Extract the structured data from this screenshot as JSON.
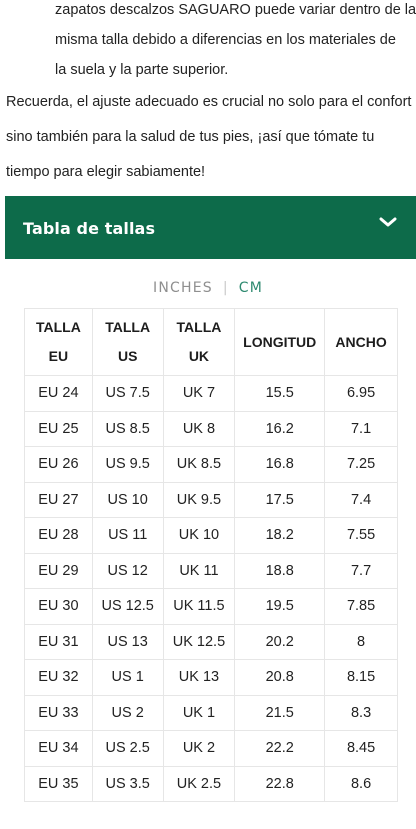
{
  "intro": {
    "list_lines": [
      "zapatos descalzos SAGUARO puede variar dentro de la",
      "misma talla debido a diferencias en los materiales de",
      "la suela y la parte superior."
    ],
    "paragraph_lines": [
      "Recuerda, el ajuste adecuado es crucial no solo para el confort",
      "sino también para la salud de tus pies, ¡así que tómate tu",
      "tiempo para elegir sabiamente!"
    ]
  },
  "accordion": {
    "title": "Tabla de tallas",
    "icon": "chevron-down-icon",
    "background": "#0d6b4a"
  },
  "units": {
    "inches": "INCHES",
    "separator": "|",
    "cm": "CM",
    "selected": "CM",
    "active_color": "#2e8a70"
  },
  "table": {
    "headers": [
      [
        "TALLA",
        "EU"
      ],
      [
        "TALLA",
        "US"
      ],
      [
        "TALLA",
        "UK"
      ],
      [
        "LONGITUD"
      ],
      [
        "ANCHO"
      ]
    ],
    "rows": [
      [
        "EU 24",
        "US 7.5",
        "UK 7",
        "15.5",
        "6.95"
      ],
      [
        "EU 25",
        "US 8.5",
        "UK 8",
        "16.2",
        "7.1"
      ],
      [
        "EU 26",
        "US 9.5",
        "UK 8.5",
        "16.8",
        "7.25"
      ],
      [
        "EU 27",
        "US 10",
        "UK 9.5",
        "17.5",
        "7.4"
      ],
      [
        "EU 28",
        "US 11",
        "UK 10",
        "18.2",
        "7.55"
      ],
      [
        "EU 29",
        "US 12",
        "UK 11",
        "18.8",
        "7.7"
      ],
      [
        "EU 30",
        "US 12.5",
        "UK 11.5",
        "19.5",
        "7.85"
      ],
      [
        "EU 31",
        "US 13",
        "UK 12.5",
        "20.2",
        "8"
      ],
      [
        "EU 32",
        "US 1",
        "UK 13",
        "20.8",
        "8.15"
      ],
      [
        "EU 33",
        "US 2",
        "UK 1",
        "21.5",
        "8.3"
      ],
      [
        "EU 34",
        "US 2.5",
        "UK 2",
        "22.2",
        "8.45"
      ],
      [
        "EU 35",
        "US 3.5",
        "UK 2.5",
        "22.8",
        "8.6"
      ]
    ]
  }
}
